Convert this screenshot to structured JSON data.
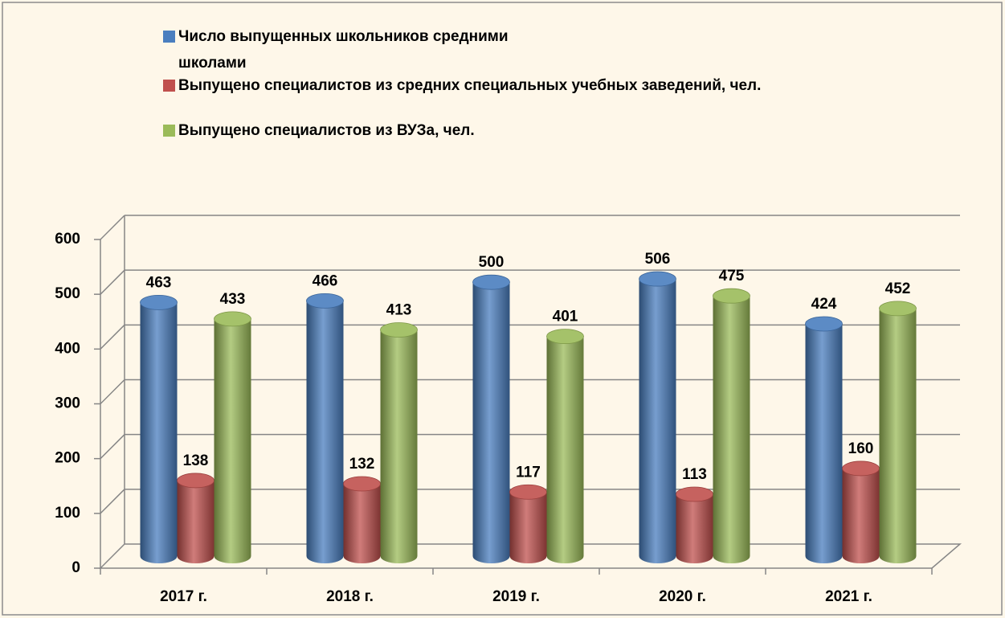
{
  "chart_data": {
    "type": "bar3d",
    "categories": [
      "2017 г.",
      "2018 г.",
      "2019 г.",
      "2020 г.",
      "2021 г."
    ],
    "series": [
      {
        "name": "Число выпущенных школьников средними школами",
        "color": "#4a7ebf",
        "values": [
          463,
          466,
          500,
          506,
          424
        ]
      },
      {
        "name": "Выпущено специалистов из средних специальных учебных заведений, чел.",
        "color": "#c0504d",
        "values": [
          138,
          132,
          117,
          113,
          160
        ]
      },
      {
        "name": "Выпущено специалистов из ВУЗа, чел.",
        "color": "#9bbb59",
        "values": [
          433,
          413,
          401,
          475,
          452
        ]
      }
    ],
    "ylim": [
      0,
      600
    ],
    "yticks": [
      0,
      100,
      200,
      300,
      400,
      500,
      600
    ],
    "grid": true
  }
}
